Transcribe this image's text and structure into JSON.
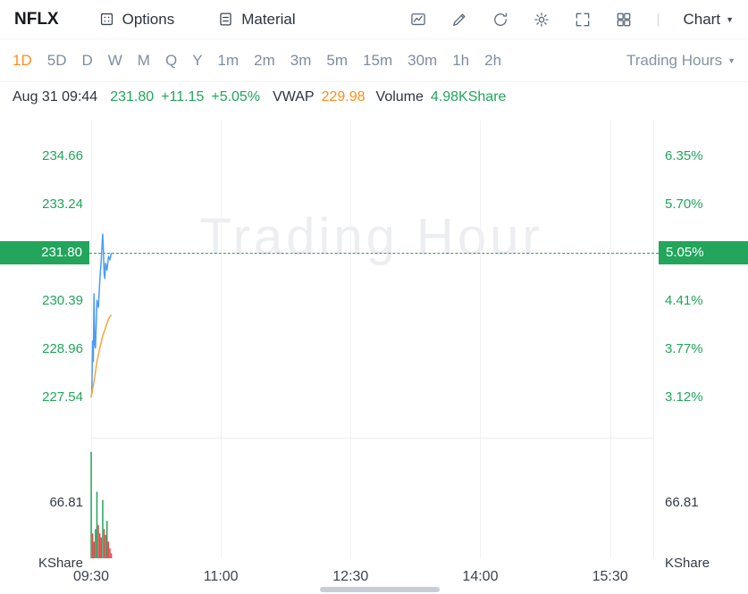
{
  "colors": {
    "green": "#23A55C",
    "red": "#E5484D",
    "orange": "#FF8E1C",
    "blue": "#4B9BF5",
    "icon_gray": "#5B6B7C"
  },
  "toolbar": {
    "symbol": "NFLX",
    "options_label": "Options",
    "material_label": "Material",
    "divider": "|",
    "chart_menu_label": "Chart"
  },
  "timeframes": {
    "items": [
      "1D",
      "5D",
      "D",
      "W",
      "M",
      "Q",
      "Y",
      "1m",
      "2m",
      "3m",
      "5m",
      "15m",
      "30m",
      "1h",
      "2h"
    ],
    "active": "1D",
    "trading_hours_label": "Trading Hours"
  },
  "quote_bar": {
    "datetime": "Aug 31 09:44",
    "last_price": "231.80",
    "change": "+11.15",
    "change_percent": "+5.05%",
    "vwap_label": "VWAP",
    "vwap_value": "229.98",
    "volume_label": "Volume",
    "volume_value": "4.98K",
    "volume_unit": "Share"
  },
  "watermark": "Trading Hour",
  "chart_data": {
    "type": "line",
    "title": "NFLX 1D intraday price with VWAP and volume",
    "x_axis": {
      "unit": "minutes since 09:30",
      "xlim_minutes": [
        0,
        390
      ],
      "ticks": [
        {
          "minute": 0,
          "label": "09:30"
        },
        {
          "minute": 90,
          "label": "11:00"
        },
        {
          "minute": 180,
          "label": "12:30"
        },
        {
          "minute": 270,
          "label": "14:00"
        },
        {
          "minute": 360,
          "label": "15:30"
        }
      ],
      "grid": true
    },
    "price_pane": {
      "ylim": [
        226.35,
        235.95
      ],
      "ticks": [
        {
          "price": "234.66",
          "percent": "6.35%",
          "highlight": false
        },
        {
          "price": "233.24",
          "percent": "5.70%",
          "highlight": false
        },
        {
          "price": "231.80",
          "percent": "5.05%",
          "highlight": true
        },
        {
          "price": "230.39",
          "percent": "4.41%",
          "highlight": false
        },
        {
          "price": "228.96",
          "percent": "3.77%",
          "highlight": false
        },
        {
          "price": "227.54",
          "percent": "3.12%",
          "highlight": false
        }
      ],
      "last_price_line": 231.8,
      "series": [
        {
          "name": "price",
          "color": "#4B9BF5",
          "points": [
            [
              0,
              227.54
            ],
            [
              0.5,
              227.7
            ],
            [
              1,
              229.2
            ],
            [
              1.5,
              228.6
            ],
            [
              2,
              230.6
            ],
            [
              2.5,
              229.1
            ],
            [
              3,
              229.0
            ],
            [
              4,
              230.4
            ],
            [
              5,
              230.2
            ],
            [
              6,
              231.0
            ],
            [
              7,
              231.6
            ],
            [
              8,
              232.36
            ],
            [
              8.5,
              231.9
            ],
            [
              9,
              231.2
            ],
            [
              9.5,
              231.05
            ],
            [
              10,
              231.5
            ],
            [
              11,
              231.3
            ],
            [
              12,
              231.7
            ],
            [
              13,
              231.6
            ],
            [
              14,
              231.8
            ]
          ]
        },
        {
          "name": "vwap",
          "color": "#F5A73C",
          "points": [
            [
              0,
              227.54
            ],
            [
              2,
              228.0
            ],
            [
              4,
              228.6
            ],
            [
              6,
              229.0
            ],
            [
              8,
              229.35
            ],
            [
              10,
              229.6
            ],
            [
              12,
              229.85
            ],
            [
              14,
              229.98
            ]
          ]
        }
      ]
    },
    "volume_pane": {
      "ylim": [
        0,
        145
      ],
      "tick_value": 66.81,
      "tick_label": "66.81",
      "unit": "KShare",
      "bars": [
        {
          "minute": 0,
          "value": 128,
          "direction": "up"
        },
        {
          "minute": 1,
          "value": 30,
          "direction": "down"
        },
        {
          "minute": 2,
          "value": 20,
          "direction": "down"
        },
        {
          "minute": 3,
          "value": 35,
          "direction": "up"
        },
        {
          "minute": 4,
          "value": 80,
          "direction": "up"
        },
        {
          "minute": 5,
          "value": 40,
          "direction": "down"
        },
        {
          "minute": 6,
          "value": 30,
          "direction": "down"
        },
        {
          "minute": 7,
          "value": 25,
          "direction": "down"
        },
        {
          "minute": 8,
          "value": 70,
          "direction": "up"
        },
        {
          "minute": 9,
          "value": 35,
          "direction": "down"
        },
        {
          "minute": 10,
          "value": 28,
          "direction": "down"
        },
        {
          "minute": 11,
          "value": 45,
          "direction": "up"
        },
        {
          "minute": 12,
          "value": 20,
          "direction": "down"
        },
        {
          "minute": 13,
          "value": 12,
          "direction": "down"
        },
        {
          "minute": 14,
          "value": 6,
          "direction": "down"
        }
      ]
    }
  }
}
